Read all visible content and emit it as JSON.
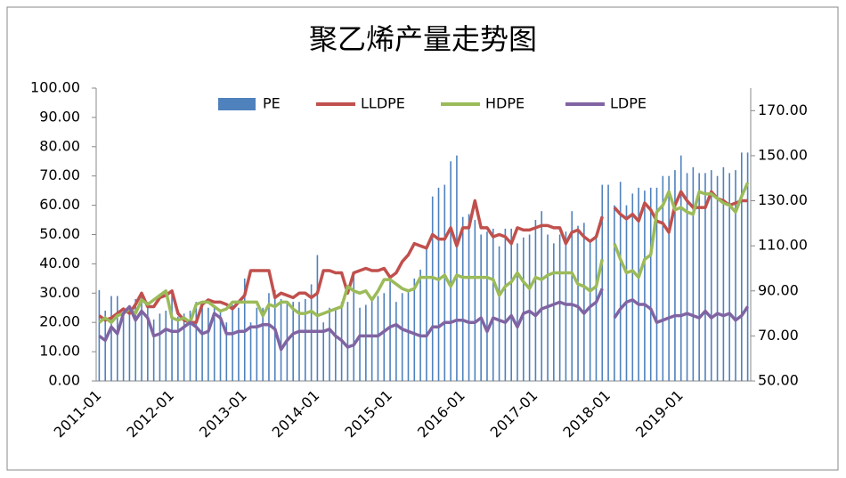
{
  "chart_data": {
    "type": "bar",
    "title": "聚乙烯产量走势图",
    "categories": [
      "2011-01",
      null,
      null,
      null,
      null,
      null,
      null,
      null,
      null,
      null,
      null,
      null,
      "2012-01",
      null,
      null,
      null,
      null,
      null,
      null,
      null,
      null,
      null,
      null,
      null,
      "2013-01",
      null,
      null,
      null,
      null,
      null,
      null,
      null,
      null,
      null,
      null,
      null,
      "2014-01",
      null,
      null,
      null,
      null,
      null,
      null,
      null,
      null,
      null,
      null,
      null,
      "2015-01",
      null,
      null,
      null,
      null,
      null,
      null,
      null,
      null,
      null,
      null,
      null,
      "2016-01",
      null,
      null,
      null,
      null,
      null,
      null,
      null,
      null,
      null,
      null,
      null,
      "2017-01",
      null,
      null,
      null,
      null,
      null,
      null,
      null,
      null,
      null,
      null,
      null,
      "2018-01",
      null,
      null,
      null,
      null,
      null,
      null,
      null,
      null,
      null,
      null,
      null,
      "2019-01",
      null,
      null,
      null,
      null,
      null,
      null,
      null,
      null,
      null,
      null,
      null
    ],
    "series": [
      {
        "name": "PE",
        "type": "bar",
        "color": "#4f81bd",
        "values": [
          31,
          24,
          29,
          29,
          22,
          25,
          28,
          29,
          27,
          21,
          23,
          24,
          30,
          22,
          23,
          24,
          27,
          25,
          25,
          25,
          24,
          20,
          26,
          25,
          35,
          20,
          25,
          25,
          30,
          31,
          28,
          27,
          27,
          27,
          28,
          33,
          43,
          20,
          25,
          25,
          27,
          27,
          37,
          25,
          26,
          28,
          29,
          30,
          34,
          27,
          30,
          31,
          35,
          38,
          45,
          63,
          66,
          67,
          75,
          77,
          56,
          57,
          55,
          50,
          51,
          52,
          46,
          52,
          52,
          47,
          49,
          50,
          55,
          58,
          50,
          47,
          50,
          51,
          58,
          53,
          54,
          48,
          49,
          67,
          67,
          60,
          68,
          60,
          64,
          66,
          65,
          66,
          66,
          70,
          70,
          72,
          77,
          71,
          73,
          71,
          71,
          72,
          70,
          73,
          71,
          72,
          78,
          78
        ]
      },
      {
        "name": "LLDPE",
        "type": "line",
        "axis": "y2",
        "color": "#c0504d",
        "values": [
          79,
          77,
          78,
          80,
          82,
          80,
          84,
          89,
          83,
          83,
          87,
          88,
          90,
          80,
          77,
          76,
          76,
          84,
          86,
          85,
          85,
          84,
          82,
          85,
          88,
          99,
          99,
          99,
          99,
          87,
          89,
          88,
          87,
          89,
          89,
          87,
          89,
          99,
          99,
          98,
          98,
          89,
          98,
          99,
          100,
          99,
          99,
          100,
          96,
          98,
          103,
          106,
          111,
          110,
          109,
          115,
          113,
          113,
          118,
          110,
          118,
          118,
          130,
          118,
          118,
          114,
          115,
          114,
          111,
          118,
          117,
          117,
          118,
          119,
          119,
          118,
          118,
          111,
          116,
          117,
          114,
          112,
          114,
          123,
          null,
          127,
          124,
          122,
          124,
          121,
          129,
          126,
          121,
          120,
          116,
          128,
          134,
          130,
          127,
          127,
          127,
          134,
          131,
          130,
          128,
          129,
          130,
          130
        ]
      },
      {
        "name": "HDPE",
        "type": "line",
        "axis": "y2",
        "color": "#9bbb59",
        "values": [
          76,
          78,
          76,
          79,
          80,
          82,
          80,
          86,
          84,
          86,
          88,
          90,
          78,
          77,
          78,
          76,
          84,
          85,
          85,
          83,
          81,
          82,
          85,
          85,
          85,
          85,
          85,
          79,
          84,
          83,
          85,
          85,
          82,
          80,
          80,
          81,
          79,
          80,
          81,
          82,
          83,
          92,
          90,
          89,
          90,
          86,
          90,
          95,
          95,
          93,
          91,
          90,
          91,
          96,
          96,
          96,
          95,
          97,
          92,
          97,
          96,
          96,
          96,
          96,
          96,
          95,
          88,
          92,
          94,
          98,
          94,
          91,
          96,
          95,
          97,
          98,
          98,
          98,
          98,
          93,
          92,
          90,
          92,
          104,
          null,
          111,
          104,
          98,
          99,
          96,
          104,
          106,
          125,
          128,
          134,
          126,
          127,
          125,
          124,
          134,
          133,
          133,
          131,
          129,
          128,
          125,
          132,
          138
        ]
      },
      {
        "name": "LDPE",
        "type": "line",
        "axis": "y2",
        "color": "#8064a2",
        "values": [
          70,
          68,
          74,
          71,
          80,
          83,
          77,
          81,
          78,
          70,
          71,
          73,
          72,
          72,
          74,
          76,
          74,
          71,
          72,
          80,
          78,
          71,
          71,
          72,
          72,
          74,
          74,
          75,
          75,
          73,
          64,
          68,
          71,
          72,
          72,
          72,
          72,
          72,
          73,
          70,
          68,
          65,
          66,
          70,
          70,
          70,
          70,
          72,
          74,
          75,
          73,
          72,
          71,
          70,
          70,
          74,
          74,
          76,
          76,
          77,
          77,
          76,
          76,
          78,
          72,
          78,
          77,
          76,
          79,
          74,
          80,
          81,
          79,
          82,
          83,
          84,
          85,
          84,
          84,
          83,
          80,
          83,
          85,
          91,
          null,
          78,
          82,
          85,
          86,
          84,
          84,
          82,
          76,
          77,
          78,
          79,
          79,
          80,
          79,
          78,
          81,
          78,
          80,
          79,
          80,
          77,
          79,
          83
        ]
      }
    ],
    "ylim": [
      0,
      100
    ],
    "yticks": [
      {
        "value": 0,
        "label": "0.00"
      },
      {
        "value": 10,
        "label": "10.00"
      },
      {
        "value": 20,
        "label": "20.00"
      },
      {
        "value": 30,
        "label": "30.00"
      },
      {
        "value": 40,
        "label": "40.00"
      },
      {
        "value": 50,
        "label": "50.00"
      },
      {
        "value": 60,
        "label": "60.00"
      },
      {
        "value": 70,
        "label": "70.00"
      },
      {
        "value": 80,
        "label": "80.00"
      },
      {
        "value": 90,
        "label": "90.00"
      },
      {
        "value": 100,
        "label": "100.00"
      }
    ],
    "y2lim": [
      50,
      180
    ],
    "y2ticks": [
      {
        "value": 50,
        "label": "50.00"
      },
      {
        "value": 70,
        "label": "70.00"
      },
      {
        "value": 90,
        "label": "90.00"
      },
      {
        "value": 110,
        "label": "110.00"
      },
      {
        "value": 130,
        "label": "130.00"
      },
      {
        "value": 150,
        "label": "150.00"
      },
      {
        "value": 170,
        "label": "170.00"
      }
    ],
    "grid": false,
    "legend": "top"
  }
}
